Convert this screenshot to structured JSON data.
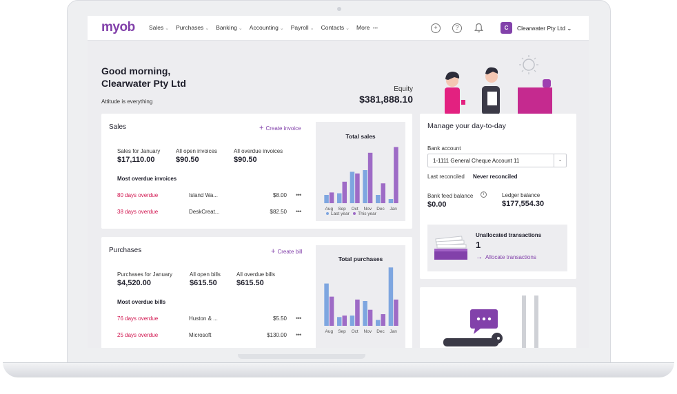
{
  "nav": {
    "logo": "myob",
    "menu": [
      {
        "label": "Sales",
        "chevron": "⌄"
      },
      {
        "label": "Purchases",
        "chevron": "⌄"
      },
      {
        "label": "Banking",
        "chevron": "⌄"
      },
      {
        "label": "Accounting",
        "chevron": "⌄"
      },
      {
        "label": "Payroll",
        "chevron": "⌄"
      },
      {
        "label": "Contacts",
        "chevron": "⌄"
      },
      {
        "label": "More",
        "chevron": "•••"
      }
    ],
    "add_icon": "+",
    "help_icon": "?",
    "avatar_initial": "C",
    "company": "Clearwater Pty Ltd ⌄"
  },
  "greeting": {
    "title": "Good morning, Clearwater Pty Ltd",
    "tagline": "Attitude is everything"
  },
  "equity": {
    "label": "Equity",
    "value": "$381,888.10"
  },
  "sales": {
    "title": "Sales",
    "create_link": "Create invoice",
    "stats": [
      {
        "label": "Sales for January",
        "value": "$17,110.00"
      },
      {
        "label": "All open invoices",
        "value": "$90.50"
      },
      {
        "label": "All overdue invoices",
        "value": "$90.50"
      }
    ],
    "overdue_heading": "Most overdue invoices",
    "rows": [
      {
        "overdue": "80 days overdue",
        "name": "Island Wa...",
        "amount": "$8.00",
        "more": "•••"
      },
      {
        "overdue": "38 days overdue",
        "name": "DeskCreat...",
        "amount": "$82.50",
        "more": "•••"
      }
    ],
    "chart_title": "Total sales",
    "legend_last": "Last year",
    "legend_this": "This year"
  },
  "purchases": {
    "title": "Purchases",
    "create_link": "Create bill",
    "stats": [
      {
        "label": "Purchases for January",
        "value": "$4,520.00"
      },
      {
        "label": "All open bills",
        "value": "$615.50"
      },
      {
        "label": "All overdue bills",
        "value": "$615.50"
      }
    ],
    "overdue_heading": "Most overdue bills",
    "rows": [
      {
        "overdue": "76 days overdue",
        "name": "Huston & ...",
        "amount": "$5.50",
        "more": "•••"
      },
      {
        "overdue": "25 days overdue",
        "name": "Microsoft",
        "amount": "$130.00",
        "more": "•••"
      }
    ],
    "chart_title": "Total purchases"
  },
  "day_to_day": {
    "title": "Manage your day-to-day",
    "bank_account_label": "Bank account",
    "bank_account_value": "1-1111 General Cheque Account 11",
    "last_reconciled_label": "Last reconciled",
    "last_reconciled_value": "Never reconciled",
    "bank_feed_label": "Bank feed balance",
    "bank_feed_value": "$0.00",
    "ledger_label": "Ledger balance",
    "ledger_value": "$177,554.30",
    "unallocated_label": "Unallocated transactions",
    "unallocated_count": "1",
    "allocate_link": "Allocate transactions"
  },
  "colors": {
    "brand": "#8241aa",
    "overdue": "#d0114c",
    "last_year": "#7ea6e0",
    "this_year": "#9e6bc6"
  },
  "chart_data": [
    {
      "type": "bar",
      "title": "Total sales",
      "categories": [
        "Aug",
        "Sep",
        "Oct",
        "Nov",
        "Dec",
        "Jan"
      ],
      "series": [
        {
          "name": "Last year",
          "values": [
            10,
            12,
            38,
            40,
            10,
            5
          ]
        },
        {
          "name": "This year",
          "values": [
            13,
            26,
            36,
            61,
            24,
            68
          ]
        }
      ],
      "ylim": [
        0,
        75
      ]
    },
    {
      "type": "bar",
      "title": "Total purchases",
      "categories": [
        "Aug",
        "Sep",
        "Oct",
        "Nov",
        "Dec",
        "Jan"
      ],
      "series": [
        {
          "name": "Last year",
          "values": [
            58,
            12,
            14,
            34,
            8,
            80
          ]
        },
        {
          "name": "This year",
          "values": [
            40,
            14,
            36,
            22,
            16,
            36
          ]
        }
      ],
      "ylim": [
        0,
        85
      ]
    }
  ]
}
